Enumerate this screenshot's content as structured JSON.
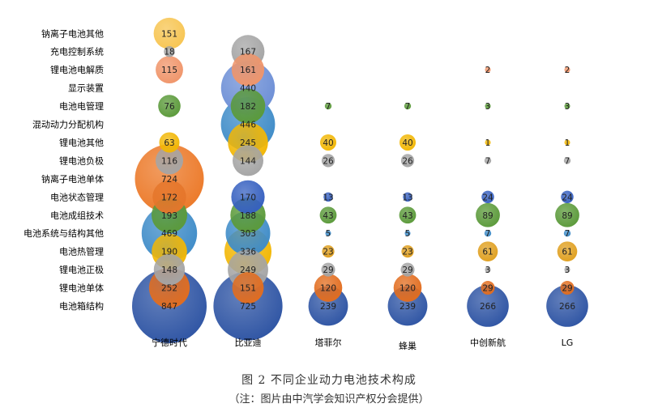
{
  "chart_data": {
    "type": "bubble",
    "categories": [
      "宁德时代",
      "比亚迪",
      "塔菲尔",
      "蜂巢",
      "中创新航",
      "LG"
    ],
    "rows": [
      "电池箱结构",
      "锂电池单体",
      "锂电池正极",
      "电池热管理",
      "电池系统与结构其他",
      "电池成组技术",
      "电池状态管理",
      "钠离子电池单体",
      "锂电池负极",
      "锂电池其他",
      "混动动力分配机构",
      "电池电管理",
      "显示装置",
      "锂电池电解质",
      "充电控制系统",
      "钠离子电池其他"
    ],
    "series": [
      {
        "company": "宁德时代",
        "points": [
          {
            "row": "电池箱结构",
            "value": 847,
            "color": "#2f55a4"
          },
          {
            "row": "锂电池单体",
            "value": 252,
            "color": "#e26d1f"
          },
          {
            "row": "锂电池正极",
            "value": 148,
            "color": "#a5a5a5"
          },
          {
            "row": "电池热管理",
            "value": 190,
            "color": "#f2b705"
          },
          {
            "row": "电池系统与结构其他",
            "value": 469,
            "color": "#3f8cc8"
          },
          {
            "row": "电池成组技术",
            "value": 193,
            "color": "#5b9a3a"
          },
          {
            "row": "电池状态管理",
            "value": 172,
            "color": "#e5762b"
          },
          {
            "row": "钠离子电池单体",
            "value": 724,
            "color": "#ec7a2a"
          },
          {
            "row": "锂电池负极",
            "value": 116,
            "color": "#a5a5a5"
          },
          {
            "row": "锂电池其他",
            "value": 63,
            "color": "#f2b705"
          },
          {
            "row": "电池电管理",
            "value": 76,
            "color": "#5b9a3a"
          },
          {
            "row": "锂电池电解质",
            "value": 115,
            "color": "#f0956a"
          },
          {
            "row": "充电控制系统",
            "value": 18,
            "color": "#a5a5a5"
          },
          {
            "row": "钠离子电池其他",
            "value": 151,
            "color": "#f7c552"
          }
        ]
      },
      {
        "company": "比亚迪",
        "points": [
          {
            "row": "电池箱结构",
            "value": 725,
            "color": "#2f55a4"
          },
          {
            "row": "锂电池单体",
            "value": 151,
            "color": "#e26d1f"
          },
          {
            "row": "锂电池正极",
            "value": 249,
            "color": "#a5a5a5"
          },
          {
            "row": "电池热管理",
            "value": 336,
            "color": "#f2b705"
          },
          {
            "row": "电池系统与结构其他",
            "value": 303,
            "color": "#3f8cc8"
          },
          {
            "row": "电池成组技术",
            "value": 188,
            "color": "#5b9a3a"
          },
          {
            "row": "电池状态管理",
            "value": 170,
            "color": "#3660c0"
          },
          {
            "row": "锂电池负极",
            "value": 144,
            "color": "#a5a5a5"
          },
          {
            "row": "锂电池其他",
            "value": 245,
            "color": "#f2b705"
          },
          {
            "row": "混动动力分配机构",
            "value": 446,
            "color": "#3f8cc8"
          },
          {
            "row": "电池电管理",
            "value": 182,
            "color": "#5b9a3a"
          },
          {
            "row": "显示装置",
            "value": 440,
            "color": "#6d8fd6"
          },
          {
            "row": "锂电池电解质",
            "value": 161,
            "color": "#f0956a"
          },
          {
            "row": "充电控制系统",
            "value": 167,
            "color": "#a5a5a5"
          }
        ]
      },
      {
        "company": "塔菲尔",
        "points": [
          {
            "row": "电池箱结构",
            "value": 239,
            "color": "#2f55a4"
          },
          {
            "row": "锂电池单体",
            "value": 120,
            "color": "#e26d1f"
          },
          {
            "row": "锂电池正极",
            "value": 29,
            "color": "#a5a5a5"
          },
          {
            "row": "电池热管理",
            "value": 23,
            "color": "#e0a020"
          },
          {
            "row": "电池系统与结构其他",
            "value": 5,
            "color": "#3f8cc8"
          },
          {
            "row": "电池成组技术",
            "value": 43,
            "color": "#5b9a3a"
          },
          {
            "row": "电池状态管理",
            "value": 13,
            "color": "#3660c0"
          },
          {
            "row": "锂电池负极",
            "value": 26,
            "color": "#a5a5a5"
          },
          {
            "row": "锂电池其他",
            "value": 40,
            "color": "#f2b705"
          },
          {
            "row": "电池电管理",
            "value": 7,
            "color": "#5b9a3a"
          }
        ]
      },
      {
        "company": "蜂巢",
        "points": [
          {
            "row": "电池箱结构",
            "value": 239,
            "color": "#2f55a4"
          },
          {
            "row": "锂电池单体",
            "value": 120,
            "color": "#e26d1f"
          },
          {
            "row": "锂电池正极",
            "value": 29,
            "color": "#a5a5a5"
          },
          {
            "row": "电池热管理",
            "value": 23,
            "color": "#e0a020"
          },
          {
            "row": "电池系统与结构其他",
            "value": 5,
            "color": "#3f8cc8"
          },
          {
            "row": "电池成组技术",
            "value": 43,
            "color": "#5b9a3a"
          },
          {
            "row": "电池状态管理",
            "value": 13,
            "color": "#3660c0"
          },
          {
            "row": "锂电池负极",
            "value": 26,
            "color": "#a5a5a5"
          },
          {
            "row": "锂电池其他",
            "value": 40,
            "color": "#f2b705"
          },
          {
            "row": "电池电管理",
            "value": 7,
            "color": "#5b9a3a"
          }
        ]
      },
      {
        "company": "中创新航",
        "points": [
          {
            "row": "电池箱结构",
            "value": 266,
            "color": "#2f55a4"
          },
          {
            "row": "锂电池单体",
            "value": 29,
            "color": "#e26d1f"
          },
          {
            "row": "锂电池正极",
            "value": 3,
            "color": "#a5a5a5"
          },
          {
            "row": "电池热管理",
            "value": 61,
            "color": "#e0a020"
          },
          {
            "row": "电池系统与结构其他",
            "value": 7,
            "color": "#3f8cc8"
          },
          {
            "row": "电池成组技术",
            "value": 89,
            "color": "#5b9a3a"
          },
          {
            "row": "电池状态管理",
            "value": 24,
            "color": "#3660c0"
          },
          {
            "row": "锂电池负极",
            "value": 7,
            "color": "#a5a5a5"
          },
          {
            "row": "锂电池其他",
            "value": 1,
            "color": "#f2b705"
          },
          {
            "row": "电池电管理",
            "value": 3,
            "color": "#5b9a3a"
          },
          {
            "row": "锂电池电解质",
            "value": 2,
            "color": "#f0956a"
          }
        ]
      },
      {
        "company": "LG",
        "points": [
          {
            "row": "电池箱结构",
            "value": 266,
            "color": "#2f55a4"
          },
          {
            "row": "锂电池单体",
            "value": 29,
            "color": "#e26d1f"
          },
          {
            "row": "锂电池正极",
            "value": 3,
            "color": "#a5a5a5"
          },
          {
            "row": "电池热管理",
            "value": 61,
            "color": "#e0a020"
          },
          {
            "row": "电池系统与结构其他",
            "value": 7,
            "color": "#3f8cc8"
          },
          {
            "row": "电池成组技术",
            "value": 89,
            "color": "#5b9a3a"
          },
          {
            "row": "电池状态管理",
            "value": 24,
            "color": "#3660c0"
          },
          {
            "row": "锂电池负极",
            "value": 7,
            "color": "#a5a5a5"
          },
          {
            "row": "锂电池其他",
            "value": 1,
            "color": "#f2b705"
          },
          {
            "row": "电池电管理",
            "value": 3,
            "color": "#5b9a3a"
          },
          {
            "row": "锂电池电解质",
            "value": 2,
            "color": "#f0956a"
          }
        ]
      }
    ]
  },
  "caption": {
    "title": "图 2 不同企业动力电池技术构成",
    "note": "（注：图片由中汽学会知识产权分会提供）"
  }
}
